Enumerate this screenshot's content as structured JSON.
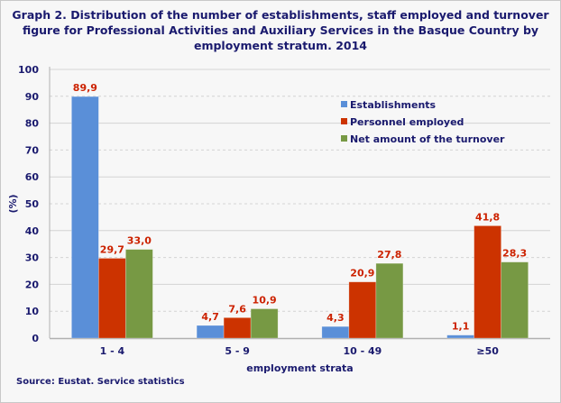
{
  "chart_data": {
    "type": "bar",
    "title": "Graph 2. Distribution of the number of establishments, staff employed and turnover figure for Professional Activities and Auxiliary Services in the Basque Country by employment stratum. 2014",
    "xlabel": "employment strata",
    "ylabel": "(%)",
    "ylim": [
      0,
      100
    ],
    "yticks": [
      0,
      10,
      20,
      30,
      40,
      50,
      60,
      70,
      80,
      90,
      100
    ],
    "grid": true,
    "legend_placement": "top-right",
    "categories": [
      "1 - 4",
      "5 - 9",
      "10 - 49",
      "≥50"
    ],
    "series": [
      {
        "name": "Establishments",
        "color": "#5a8fd8",
        "values": [
          89.9,
          4.7,
          4.3,
          1.1
        ],
        "labels": [
          "89,9",
          "4,7",
          "4,3",
          "1,1"
        ]
      },
      {
        "name": "Personnel employed",
        "color": "#cc3300",
        "values": [
          29.7,
          7.6,
          20.9,
          41.8
        ],
        "labels": [
          "29,7",
          "7,6",
          "20,9",
          "41,8"
        ]
      },
      {
        "name": "Net amount of the turnover",
        "color": "#779944",
        "values": [
          33.0,
          10.9,
          27.8,
          28.3
        ],
        "labels": [
          "33,0",
          "10,9",
          "27,8",
          "28,3"
        ]
      }
    ],
    "label_color": "#cc2200",
    "text_color": "#1a1a6e"
  },
  "source": "Source: Eustat. Service statistics"
}
